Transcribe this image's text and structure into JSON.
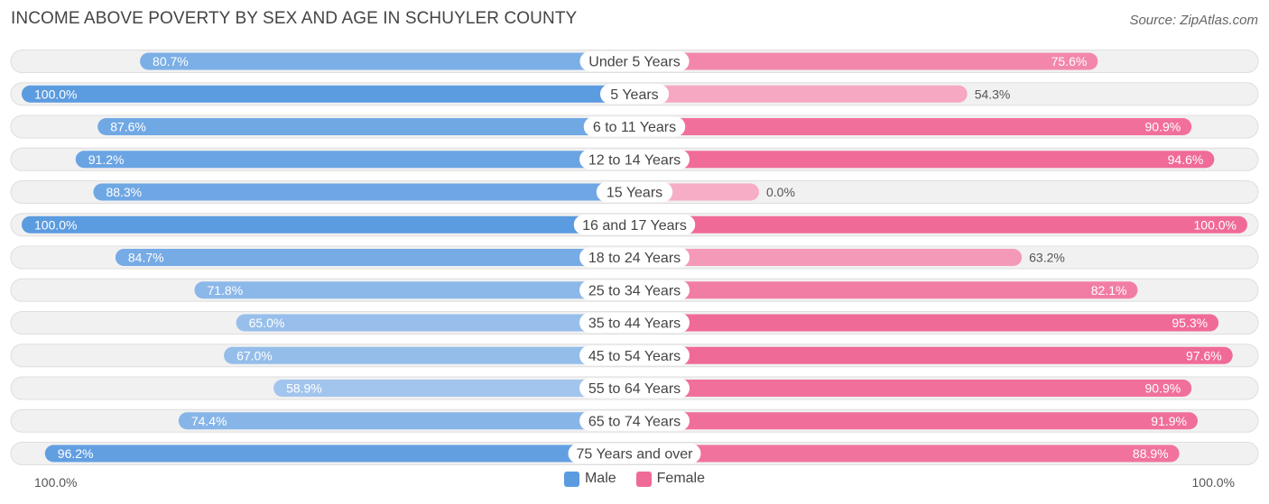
{
  "title": "INCOME ABOVE POVERTY BY SEX AND AGE IN SCHUYLER COUNTY",
  "source": "Source: ZipAtlas.com",
  "colors": {
    "male_strong": "#5b9be0",
    "male_light": "#a9c9ee",
    "female_strong": "#f06a97",
    "female_light": "#f7adc6",
    "row_bg": "#efefef"
  },
  "legend": {
    "male": "Male",
    "female": "Female"
  },
  "axis": {
    "left_label": "100.0%",
    "right_label": "100.0%"
  },
  "chart_data": {
    "type": "bar",
    "orientation": "horizontal-diverging",
    "title": "INCOME ABOVE POVERTY BY SEX AND AGE IN SCHUYLER COUNTY",
    "xlim": [
      0,
      100
    ],
    "categories": [
      "Under 5 Years",
      "5 Years",
      "6 to 11 Years",
      "12 to 14 Years",
      "15 Years",
      "16 and 17 Years",
      "18 to 24 Years",
      "25 to 34 Years",
      "35 to 44 Years",
      "45 to 54 Years",
      "55 to 64 Years",
      "65 to 74 Years",
      "75 Years and over"
    ],
    "series": [
      {
        "name": "Male",
        "values": [
          80.7,
          100.0,
          87.6,
          91.2,
          88.3,
          100.0,
          84.7,
          71.8,
          65.0,
          67.0,
          58.9,
          74.4,
          96.2
        ],
        "labels": [
          "80.7%",
          "100.0%",
          "87.6%",
          "91.2%",
          "88.3%",
          "100.0%",
          "84.7%",
          "71.8%",
          "65.0%",
          "67.0%",
          "58.9%",
          "74.4%",
          "96.2%"
        ]
      },
      {
        "name": "Female",
        "values": [
          75.6,
          54.3,
          90.9,
          94.6,
          0.0,
          100.0,
          63.2,
          82.1,
          95.3,
          97.6,
          90.9,
          91.9,
          88.9
        ],
        "labels": [
          "75.6%",
          "54.3%",
          "90.9%",
          "94.6%",
          "0.0%",
          "100.0%",
          "63.2%",
          "82.1%",
          "95.3%",
          "97.6%",
          "90.9%",
          "91.9%",
          "88.9%"
        ]
      }
    ]
  }
}
